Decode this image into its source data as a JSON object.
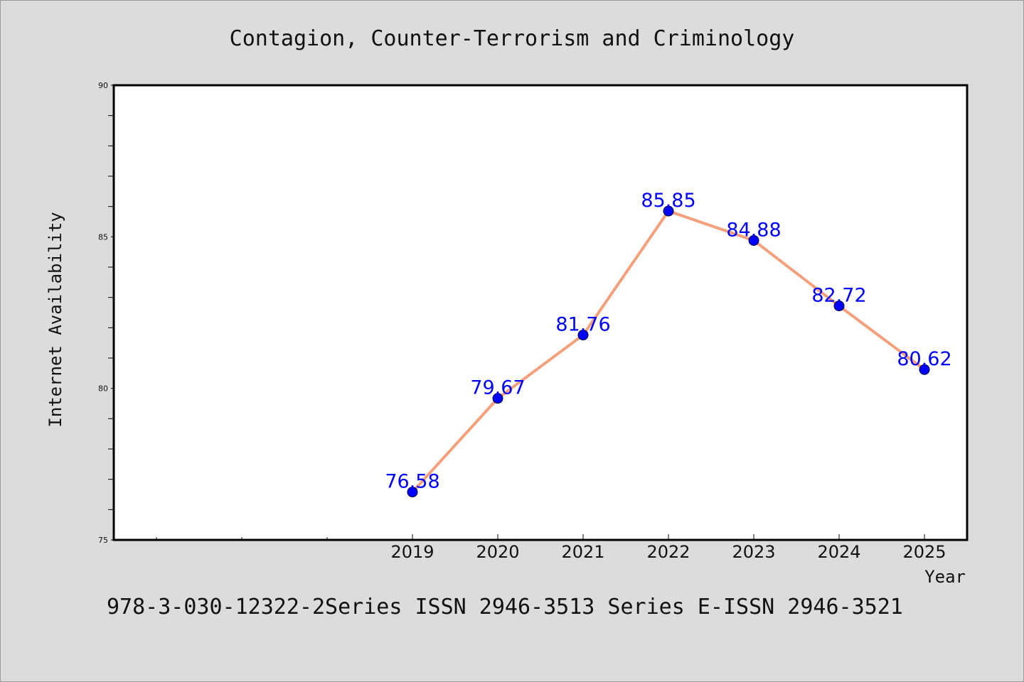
{
  "chart_data": {
    "type": "line",
    "title": "Contagion, Counter-Terrorism and Criminology",
    "xlabel": "Year",
    "ylabel": "Internet Availability",
    "footer": "978-3-030-12322-2Series ISSN 2946-3513 Series E-ISSN 2946-3521",
    "x": [
      "2019",
      "2020",
      "2021",
      "2022",
      "2023",
      "2024",
      "2025"
    ],
    "series": [
      {
        "values": [
          76.58,
          79.67,
          81.76,
          85.85,
          84.88,
          82.72,
          80.62
        ],
        "labels": [
          "76.58",
          "79.67",
          "81.76",
          "85.85",
          "84.88",
          "82.72",
          "80.62"
        ]
      }
    ],
    "ylim": [
      75,
      90
    ],
    "yticks": [
      "75",
      "80",
      "85",
      "90"
    ],
    "grid": false,
    "colors": {
      "line": "#f4a07c",
      "marker": "#0000ff",
      "label": "#0000ff",
      "background": "#dcdcdc",
      "plot": "#ffffff"
    }
  }
}
